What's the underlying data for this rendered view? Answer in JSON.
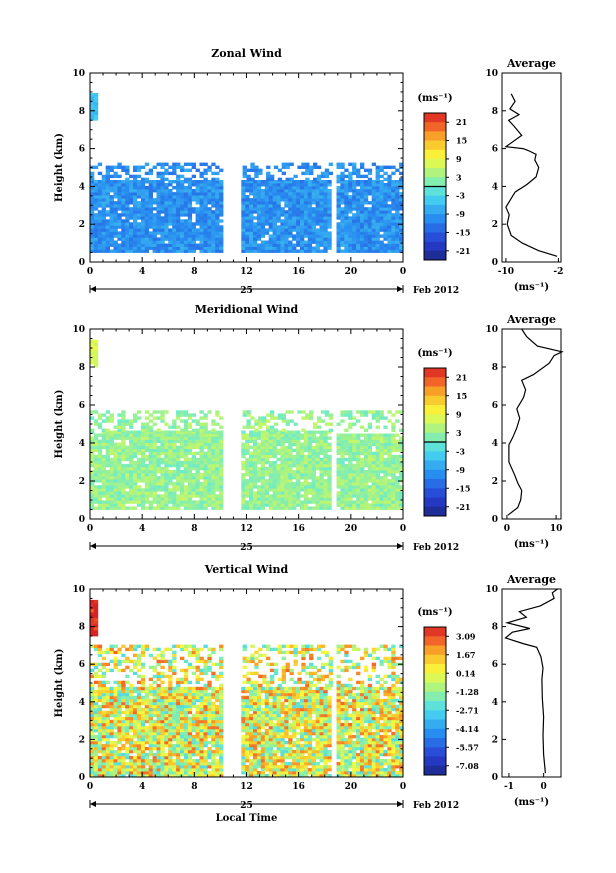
{
  "chart_data": [
    {
      "type": "heatmap",
      "title": "Zonal Wind",
      "ylabel": "Height (km)",
      "xlabel": "",
      "xticks": [
        "0",
        "4",
        "8",
        "12",
        "16",
        "20",
        "0"
      ],
      "yticks": [
        "0",
        "2",
        "4",
        "6",
        "8",
        "10"
      ],
      "xlim": [
        0,
        24
      ],
      "ylim": [
        0,
        10
      ],
      "date_label": "25",
      "date_suffix": "Feb 2012",
      "colorbar": {
        "unit": "(ms⁻¹)",
        "ticks": [
          "21",
          "15",
          "9",
          "3",
          "-3",
          "-9",
          "-15",
          "-21"
        ],
        "range": [
          -24,
          24
        ]
      },
      "field": {
        "base": -10,
        "blocks": [
          {
            "t0": 0.0,
            "t1": 10.2,
            "h0": 0.5,
            "h1": 4.3
          },
          {
            "t0": 11.6,
            "t1": 18.4,
            "h0": 0.5,
            "h1": 4.2
          },
          {
            "t0": 18.9,
            "t1": 24.0,
            "h0": 0.5,
            "h1": 4.2
          }
        ],
        "upper": {
          "t0": 0.0,
          "t1": 24.0,
          "h0": 4.3,
          "h1": 5.2
        },
        "spot": {
          "t0": 0.0,
          "t1": 0.4,
          "h0": 7.5,
          "h1": 8.9
        }
      },
      "average": {
        "title": "Average",
        "xlabel": "(ms⁻¹)",
        "xticks": [
          "-10",
          "-2"
        ],
        "xlim": [
          -10.6,
          -1.6
        ],
        "ylim": [
          0,
          10
        ],
        "profile": [
          [
            -2.2,
            0.3
          ],
          [
            -5.0,
            0.6
          ],
          [
            -7.5,
            1.0
          ],
          [
            -9.2,
            1.4
          ],
          [
            -9.8,
            2.0
          ],
          [
            -9.5,
            2.5
          ],
          [
            -10.0,
            2.9
          ],
          [
            -9.3,
            3.3
          ],
          [
            -8.6,
            3.7
          ],
          [
            -6.8,
            4.1
          ],
          [
            -5.4,
            4.5
          ],
          [
            -5.0,
            5.0
          ],
          [
            -5.6,
            5.4
          ],
          [
            -5.4,
            5.7
          ],
          [
            -6.6,
            5.9
          ],
          [
            -7.4,
            6.0
          ],
          [
            -10.0,
            6.1
          ],
          [
            -7.6,
            6.7
          ],
          [
            -8.8,
            7.2
          ],
          [
            -9.6,
            7.5
          ],
          [
            -8.0,
            7.8
          ],
          [
            -9.4,
            8.1
          ],
          [
            -8.6,
            8.5
          ],
          [
            -9.2,
            8.9
          ]
        ]
      }
    },
    {
      "type": "heatmap",
      "title": "Meridional Wind",
      "ylabel": "Height (km)",
      "xlabel": "",
      "xticks": [
        "0",
        "4",
        "8",
        "12",
        "16",
        "20",
        "0"
      ],
      "yticks": [
        "0",
        "2",
        "4",
        "6",
        "8",
        "10"
      ],
      "xlim": [
        0,
        24
      ],
      "ylim": [
        0,
        10
      ],
      "date_label": "25",
      "date_suffix": "Feb 2012",
      "colorbar": {
        "unit": "(ms⁻¹)",
        "ticks": [
          "21",
          "15",
          "9",
          "3",
          "-3",
          "-9",
          "-15",
          "-21"
        ],
        "range": [
          -24,
          24
        ]
      },
      "field": {
        "base": 3,
        "blocks": [
          {
            "t0": 0.0,
            "t1": 10.2,
            "h0": 0.5,
            "h1": 4.6
          },
          {
            "t0": 11.6,
            "t1": 18.4,
            "h0": 0.5,
            "h1": 4.6
          },
          {
            "t0": 18.9,
            "t1": 24.0,
            "h0": 0.5,
            "h1": 4.5
          }
        ],
        "upper": {
          "t0": 0.0,
          "t1": 24.0,
          "h0": 4.6,
          "h1": 5.6
        },
        "spot": {
          "t0": 0.0,
          "t1": 0.6,
          "h0": 8.0,
          "h1": 9.4
        }
      },
      "average": {
        "title": "Average",
        "xlabel": "(ms⁻¹)",
        "xticks": [
          "0",
          "10"
        ],
        "xlim": [
          -1,
          11
        ],
        "ylim": [
          0,
          10
        ],
        "profile": [
          [
            0.2,
            0.2
          ],
          [
            2.2,
            0.6
          ],
          [
            2.8,
            1.0
          ],
          [
            3.0,
            1.5
          ],
          [
            2.2,
            1.9
          ],
          [
            1.6,
            2.3
          ],
          [
            0.4,
            3.0
          ],
          [
            0.4,
            3.9
          ],
          [
            1.2,
            4.3
          ],
          [
            2.0,
            4.8
          ],
          [
            2.6,
            5.3
          ],
          [
            2.0,
            5.8
          ],
          [
            3.4,
            6.4
          ],
          [
            3.8,
            6.8
          ],
          [
            3.0,
            7.3
          ],
          [
            5.4,
            7.6
          ],
          [
            8.6,
            8.2
          ],
          [
            9.6,
            8.6
          ],
          [
            11.2,
            8.8
          ],
          [
            6.2,
            9.1
          ],
          [
            4.0,
            9.6
          ],
          [
            3.0,
            10.0
          ]
        ]
      }
    },
    {
      "type": "heatmap",
      "title": "Vertical Wind",
      "ylabel": "Height (km)",
      "xlabel": "Local Time",
      "xticks": [
        "0",
        "4",
        "8",
        "12",
        "16",
        "20",
        "0"
      ],
      "yticks": [
        "0",
        "2",
        "4",
        "6",
        "8",
        "10"
      ],
      "xlim": [
        0,
        24
      ],
      "ylim": [
        0,
        10
      ],
      "date_label": "25",
      "date_suffix": "Feb 2012",
      "colorbar": {
        "unit": "(ms⁻¹)",
        "ticks": [
          "3.09",
          "1.67",
          "0.14",
          "-1.28",
          "-2.71",
          "-4.14",
          "-5.57",
          "-7.08"
        ],
        "range": [
          -8.5,
          4.5
        ]
      },
      "field": {
        "base": 0.3,
        "blocks": [
          {
            "t0": 0.0,
            "t1": 10.2,
            "h0": 0.0,
            "h1": 4.8
          },
          {
            "t0": 11.6,
            "t1": 18.4,
            "h0": 0.0,
            "h1": 4.8
          },
          {
            "t0": 18.9,
            "t1": 24.0,
            "h0": 0.0,
            "h1": 4.8
          }
        ],
        "upper": {
          "t0": 0.0,
          "t1": 24.0,
          "h0": 4.8,
          "h1": 7.0
        },
        "spot": {
          "t0": 0.0,
          "t1": 0.5,
          "h0": 7.5,
          "h1": 9.4
        }
      },
      "average": {
        "title": "Average",
        "xlabel": "(ms⁻¹)",
        "xticks": [
          "-1",
          "0"
        ],
        "xlim": [
          -1.2,
          0.5
        ],
        "ylim": [
          0,
          10
        ],
        "profile": [
          [
            0.05,
            0.2
          ],
          [
            0.0,
            1.2
          ],
          [
            -0.02,
            2.2
          ],
          [
            0.0,
            3.2
          ],
          [
            -0.04,
            4.2
          ],
          [
            -0.05,
            5.2
          ],
          [
            -0.02,
            5.8
          ],
          [
            -0.08,
            6.4
          ],
          [
            -0.2,
            6.9
          ],
          [
            -0.6,
            7.1
          ],
          [
            -1.1,
            7.4
          ],
          [
            -0.9,
            7.7
          ],
          [
            -0.4,
            7.9
          ],
          [
            -1.05,
            8.2
          ],
          [
            -0.5,
            8.5
          ],
          [
            -0.7,
            8.8
          ],
          [
            -0.1,
            9.1
          ],
          [
            0.3,
            9.5
          ],
          [
            0.25,
            9.8
          ],
          [
            0.4,
            10.0
          ]
        ]
      }
    }
  ]
}
